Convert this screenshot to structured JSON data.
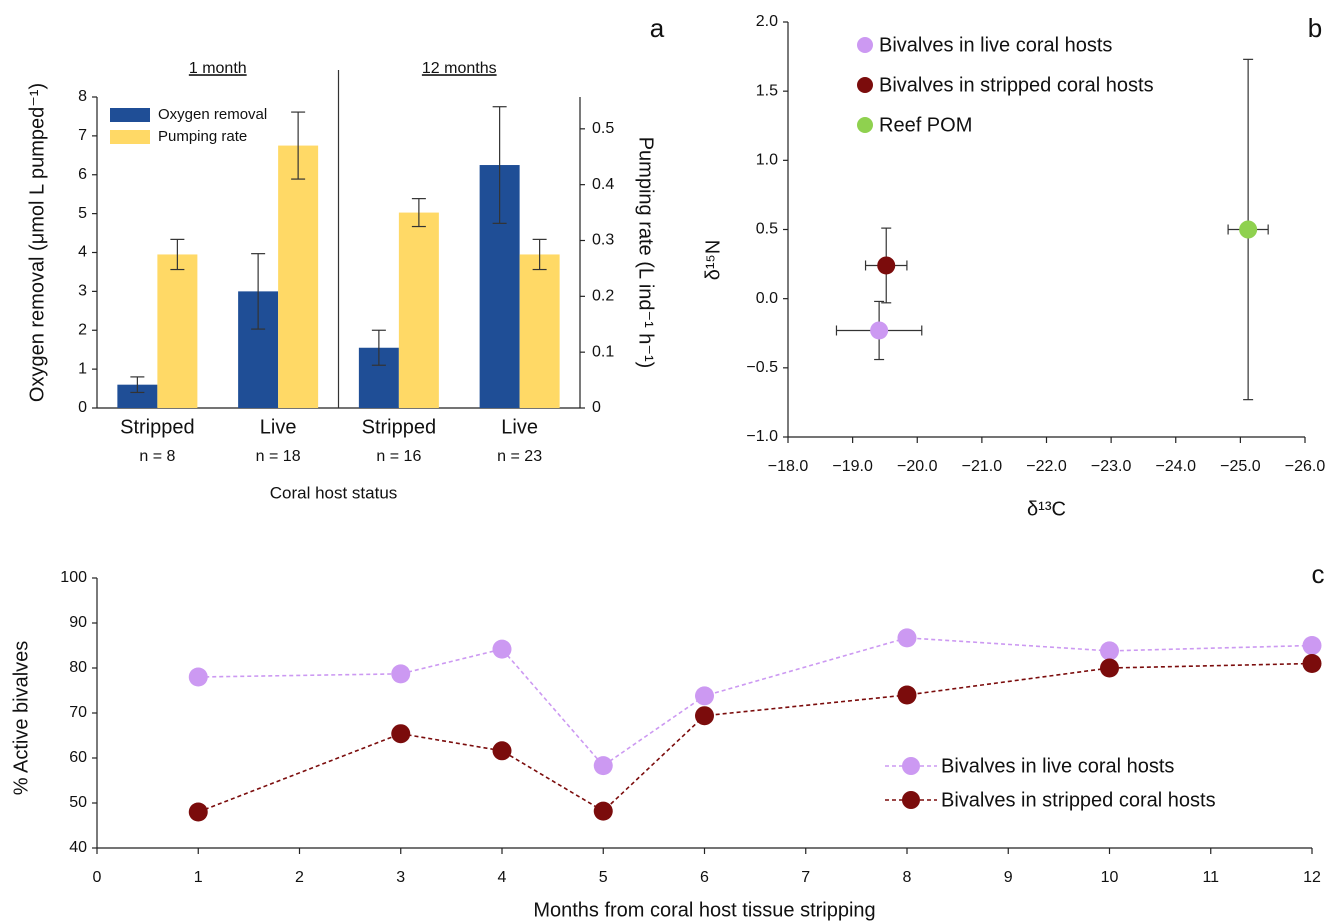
{
  "chart_data": [
    {
      "type": "bar",
      "panel_label": "a",
      "groups": [
        "1 month",
        "12 months"
      ],
      "categories": [
        "Stripped",
        "Live",
        "Stripped",
        "Live"
      ],
      "sample_sizes": [
        "n = 8",
        "n = 18",
        "n = 16",
        "n = 23"
      ],
      "x_label": "Coral host status",
      "y_label": "Oxygen removal (μmol L pumped⁻¹)",
      "y2_label": "Pumping rate (L ind⁻¹ h⁻¹)",
      "ylim": [
        0,
        8
      ],
      "yticks": [
        0,
        1,
        2,
        3,
        4,
        5,
        6,
        7,
        8
      ],
      "y2lim": [
        0,
        0.557
      ],
      "y2ticks": [
        0,
        0.1,
        0.2,
        0.3,
        0.4,
        0.5
      ],
      "series": [
        {
          "name": "Oxygen removal",
          "color": "#1f4e96",
          "values": [
            0.6,
            3.0,
            1.55,
            6.25
          ],
          "errors": [
            0.2,
            0.97,
            0.45,
            1.5
          ]
        },
        {
          "name": "Pumping rate",
          "color": "#ffd966",
          "axis": "y2",
          "values": [
            0.275,
            0.47,
            0.35,
            0.275
          ],
          "errors": [
            0.027,
            0.06,
            0.025,
            0.027
          ]
        }
      ]
    },
    {
      "type": "scatter",
      "panel_label": "b",
      "x_label": "δ¹³C",
      "y_label": "δ¹⁵N",
      "xlim": [
        -18,
        -26
      ],
      "xticks": [
        {
          "value": -18,
          "label": "−18.0"
        },
        {
          "value": -19,
          "label": "−19.0"
        },
        {
          "value": -20,
          "label": "−20.0"
        },
        {
          "value": -21,
          "label": "−21.0"
        },
        {
          "value": -22,
          "label": "−22.0"
        },
        {
          "value": -23,
          "label": "−23.0"
        },
        {
          "value": -24,
          "label": "−24.0"
        },
        {
          "value": -25,
          "label": "−25.0"
        },
        {
          "value": -26,
          "label": "−26.0"
        }
      ],
      "ylim": [
        -1,
        2
      ],
      "yticks": [
        {
          "value": -1,
          "label": "−1.0"
        },
        {
          "value": -0.5,
          "label": "−0.5"
        },
        {
          "value": 0,
          "label": "0.0"
        },
        {
          "value": 0.5,
          "label": "0.5"
        },
        {
          "value": 1,
          "label": "1.0"
        },
        {
          "value": 1.5,
          "label": "1.5"
        },
        {
          "value": 2,
          "label": "2.0"
        }
      ],
      "series": [
        {
          "name": "Bivalves in live coral hosts",
          "color": "#cc99f2",
          "x": [
            -19.41
          ],
          "y": [
            -0.23
          ],
          "xerr": [
            0.66
          ],
          "yerr": [
            0.21
          ]
        },
        {
          "name": "Bivalves in stripped coral hosts",
          "color": "#7b0c0c",
          "x": [
            -19.52
          ],
          "y": [
            0.24
          ],
          "xerr": [
            0.32
          ],
          "yerr": [
            0.27
          ]
        },
        {
          "name": "Reef POM",
          "color": "#8fd14f",
          "x": [
            -25.12
          ],
          "y": [
            0.5
          ],
          "xerr": [
            0.31
          ],
          "yerr": [
            1.23
          ]
        }
      ]
    },
    {
      "type": "line",
      "panel_label": "c",
      "x_label": "Months from coral host tissue stripping",
      "y_label": "% Active bivalves",
      "x": [
        1,
        3,
        4,
        5,
        6,
        8,
        10,
        12
      ],
      "xlim": [
        0,
        12
      ],
      "xticks": [
        0,
        1,
        2,
        3,
        4,
        5,
        6,
        7,
        8,
        9,
        10,
        11,
        12
      ],
      "ylim": [
        40,
        100
      ],
      "yticks": [
        40,
        50,
        60,
        70,
        80,
        90,
        100
      ],
      "legend": "lower right",
      "series": [
        {
          "name": "Bivalves in live coral hosts",
          "color": "#cc99f2",
          "values": [
            78,
            78.7,
            84.2,
            58.3,
            73.8,
            86.7,
            83.8,
            85
          ]
        },
        {
          "name": "Bivalves in stripped coral hosts",
          "color": "#7b0c0c",
          "values": [
            48,
            65.4,
            61.6,
            48.2,
            69.4,
            74,
            80,
            81
          ]
        }
      ]
    }
  ]
}
